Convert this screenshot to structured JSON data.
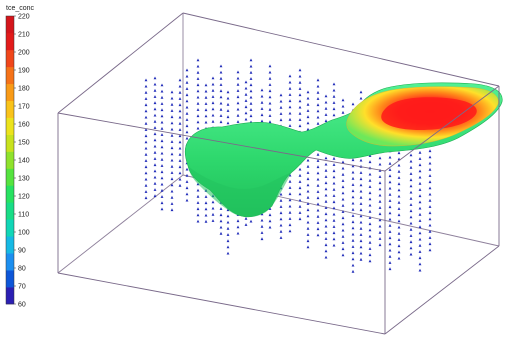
{
  "legend": {
    "title": "tce_conc",
    "ticks": [
      "220",
      "210",
      "200",
      "190",
      "180",
      "170",
      "160",
      "150",
      "140",
      "130",
      "120",
      "110",
      "100",
      "90",
      "80",
      "70",
      "60"
    ],
    "colors": [
      "#2b1fb3",
      "#0d56d8",
      "#1c8ff0",
      "#16b9e4",
      "#11d6b7",
      "#18dd86",
      "#27e261",
      "#55e33f",
      "#8fe22c",
      "#c8e21e",
      "#ece31c",
      "#f9c31a",
      "#f99b17",
      "#f57218",
      "#f0461a",
      "#e21b1a",
      "#d4151b"
    ]
  },
  "plume": {
    "body_color": "#33e07a",
    "core_colors": [
      "#ff1f1f",
      "#ff6a1a",
      "#ffb21c",
      "#d8ee2a",
      "#6ee85a"
    ]
  },
  "wells": {
    "marker_color": "#1f2ab8"
  },
  "box": {
    "edge_color": "#7a6a8a"
  }
}
